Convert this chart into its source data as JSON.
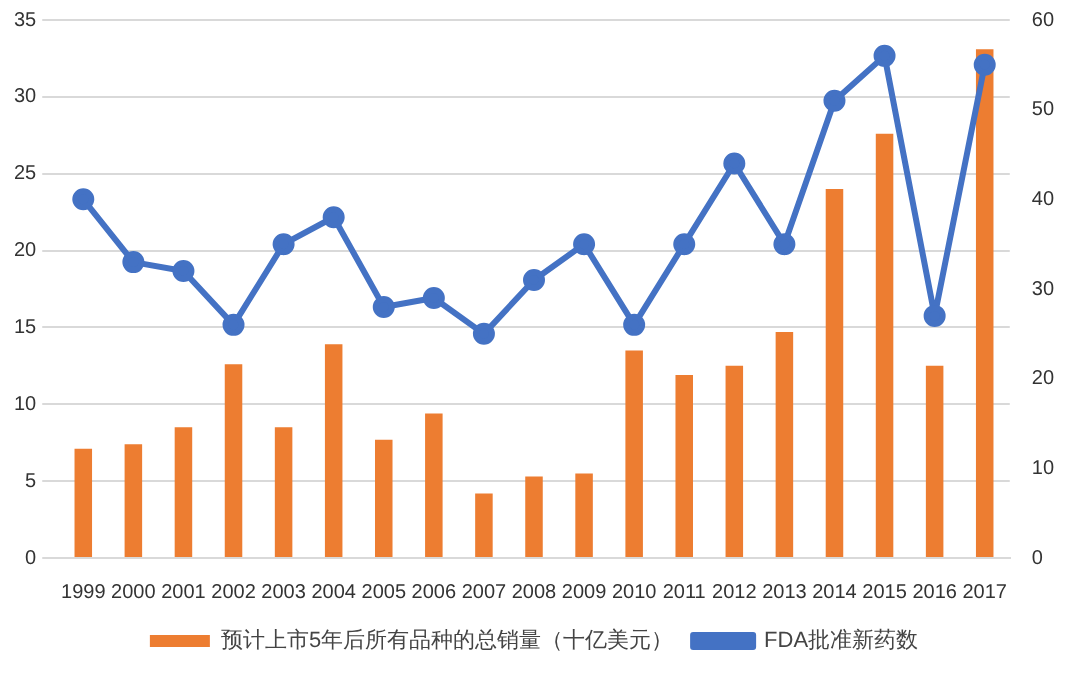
{
  "chart_data": {
    "type": "bar",
    "categories": [
      "1999",
      "2000",
      "2001",
      "2002",
      "2003",
      "2004",
      "2005",
      "2006",
      "2007",
      "2008",
      "2009",
      "2010",
      "2011",
      "2012",
      "2013",
      "2014",
      "2015",
      "2016",
      "2017"
    ],
    "series": [
      {
        "name": "预计上市5年后所有品种的总销量（十亿美元）",
        "color": "#ed7d31",
        "values": [
          7.1,
          7.4,
          8.5,
          12.6,
          8.5,
          13.9,
          7.7,
          9.4,
          4.2,
          5.3,
          5.5,
          13.5,
          11.9,
          12.5,
          14.7,
          24.0,
          27.6,
          12.5,
          33.1
        ]
      },
      {
        "name": "FDA批准新药数",
        "type": "line",
        "axis": "y2",
        "color": "#4472c4",
        "marker": "circle",
        "values": [
          40,
          33,
          32,
          26,
          35,
          38,
          28,
          29,
          25,
          31,
          35,
          26,
          35,
          44,
          35,
          51,
          56,
          27,
          55
        ]
      }
    ],
    "ylim": [
      0,
      35
    ],
    "yticks": [
      0,
      5,
      10,
      15,
      20,
      25,
      30,
      35
    ],
    "y2lim": [
      0,
      60
    ],
    "y2ticks": [
      0,
      10,
      20,
      30,
      40,
      50,
      60
    ],
    "grid": "y",
    "legend": "bottom"
  }
}
